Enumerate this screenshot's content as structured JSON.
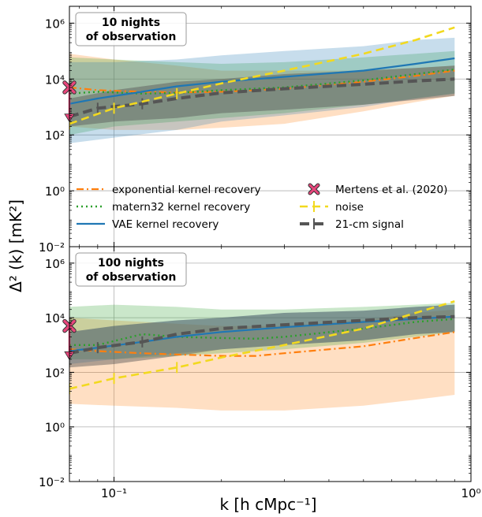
{
  "figure": {
    "ylabel": "Δ² (k) [mK²]",
    "xlabel": "k [h cMpc⁻¹]"
  },
  "legend": {
    "exponential": "exponential kernel recovery",
    "matern32": "matern32 kernel recovery",
    "vae": "VAE kernel recovery",
    "mertens": "Mertens et al. (2020)",
    "noise": "noise",
    "signal": "21-cm signal"
  },
  "colors": {
    "exponential": "#ff7f0e",
    "matern32": "#2ca02c",
    "vae": "#1f77b4",
    "mertens": "#e8467c",
    "noise": "#f2d91f",
    "signal": "#555555"
  },
  "chart_data": [
    {
      "type": "line",
      "title": "10 nights of observation",
      "xscale": "log",
      "yscale": "log",
      "xlim": [
        0.075,
        1.0
      ],
      "ylim": [
        0.01,
        4000000
      ],
      "x_ticks": [
        "10⁻¹",
        "10⁰"
      ],
      "y_ticks": [
        "10⁻²",
        "10⁰",
        "10²",
        "10⁴",
        "10⁶"
      ],
      "grid": true,
      "legend_position": "bottom",
      "bands": [
        {
          "series": "exponential",
          "x": [
            0.075,
            0.1,
            0.15,
            0.2,
            0.3,
            0.5,
            0.7,
            0.9
          ],
          "low": [
            200,
            150,
            150,
            180,
            250,
            700,
            1500,
            2500
          ],
          "high": [
            80000,
            50000,
            30000,
            20000,
            20000,
            20000,
            25000,
            30000
          ]
        },
        {
          "series": "matern32",
          "x": [
            0.075,
            0.1,
            0.15,
            0.2,
            0.3,
            0.5,
            0.7,
            0.9
          ],
          "low": [
            100,
            200,
            300,
            400,
            600,
            1200,
            2000,
            3000
          ],
          "high": [
            60000,
            50000,
            40000,
            35000,
            40000,
            60000,
            80000,
            100000
          ]
        },
        {
          "series": "vae",
          "x": [
            0.075,
            0.1,
            0.15,
            0.2,
            0.3,
            0.5,
            0.7,
            0.9
          ],
          "low": [
            50,
            80,
            150,
            300,
            500,
            1000,
            2000,
            3000
          ],
          "high": [
            40000,
            40000,
            50000,
            70000,
            100000,
            150000,
            250000,
            300000
          ]
        },
        {
          "series": "signal",
          "x": [
            0.075,
            0.1,
            0.15,
            0.2,
            0.3,
            0.5,
            0.7,
            0.9
          ],
          "low": [
            200,
            300,
            400,
            600,
            800,
            1200,
            1800,
            2500
          ],
          "high": [
            2000,
            4000,
            8000,
            10000,
            15000,
            20000,
            25000,
            30000
          ]
        }
      ],
      "series": [
        {
          "name": "exponential kernel recovery",
          "style": "dashdot",
          "x": [
            0.075,
            0.09,
            0.12,
            0.15,
            0.2,
            0.3,
            0.5,
            0.7,
            0.9
          ],
          "y": [
            5000,
            4000,
            3500,
            3300,
            3500,
            4500,
            8000,
            13000,
            20000
          ]
        },
        {
          "name": "matern32 kernel recovery",
          "style": "dotted",
          "x": [
            0.075,
            0.09,
            0.12,
            0.15,
            0.2,
            0.3,
            0.5,
            0.7,
            0.9
          ],
          "y": [
            3000,
            3500,
            3000,
            3200,
            4000,
            5000,
            9000,
            15000,
            22000
          ]
        },
        {
          "name": "VAE kernel recovery",
          "style": "solid",
          "x": [
            0.075,
            0.09,
            0.12,
            0.15,
            0.2,
            0.3,
            0.5,
            0.7,
            0.9
          ],
          "y": [
            1300,
            2000,
            3500,
            5500,
            8000,
            12000,
            20000,
            35000,
            55000
          ]
        },
        {
          "name": "21-cm signal",
          "style": "dashed-thick",
          "x": [
            0.075,
            0.09,
            0.12,
            0.15,
            0.2,
            0.3,
            0.5,
            0.7,
            0.9
          ],
          "y": [
            450,
            900,
            1300,
            2000,
            3200,
            4500,
            6500,
            8500,
            10000
          ]
        },
        {
          "name": "noise",
          "style": "dashed",
          "x": [
            0.075,
            0.1,
            0.15,
            0.2,
            0.3,
            0.5,
            0.7,
            0.9
          ],
          "y": [
            250,
            900,
            3000,
            7000,
            20000,
            80000,
            250000,
            700000
          ]
        }
      ],
      "mertens": {
        "x": 0.075,
        "y": 5000,
        "upper_limit": true
      }
    },
    {
      "type": "line",
      "title": "100 nights of observation",
      "xscale": "log",
      "yscale": "log",
      "xlim": [
        0.075,
        1.0
      ],
      "ylim": [
        0.01,
        4000000
      ],
      "x_ticks": [
        "10⁻¹",
        "10⁰"
      ],
      "y_ticks": [
        "10⁻²",
        "10⁰",
        "10²",
        "10⁴",
        "10⁶"
      ],
      "grid": true,
      "bands": [
        {
          "series": "exponential",
          "x": [
            0.075,
            0.1,
            0.15,
            0.2,
            0.3,
            0.5,
            0.7,
            0.9
          ],
          "low": [
            7,
            6,
            5,
            4,
            4,
            6,
            10,
            15
          ],
          "high": [
            10000,
            8000,
            6000,
            5000,
            5000,
            8000,
            15000,
            20000
          ]
        },
        {
          "series": "matern32",
          "x": [
            0.075,
            0.1,
            0.15,
            0.2,
            0.3,
            0.5,
            0.7,
            0.9
          ],
          "low": [
            300,
            300,
            400,
            500,
            700,
            1200,
            2000,
            3000
          ],
          "high": [
            25000,
            30000,
            25000,
            20000,
            20000,
            25000,
            30000,
            35000
          ]
        },
        {
          "series": "vae",
          "x": [
            0.075,
            0.1,
            0.15,
            0.2,
            0.3,
            0.5,
            0.7,
            0.9
          ],
          "low": [
            200,
            300,
            500,
            700,
            1000,
            1500,
            2500,
            3000
          ],
          "high": [
            3000,
            5000,
            8000,
            10000,
            15000,
            18000,
            25000,
            30000
          ]
        },
        {
          "series": "signal",
          "x": [
            0.075,
            0.1,
            0.15,
            0.2,
            0.3,
            0.5,
            0.7,
            0.9
          ],
          "low": [
            150,
            200,
            400,
            700,
            1000,
            1500,
            2500,
            3000
          ],
          "high": [
            3000,
            5000,
            8000,
            10000,
            15000,
            18000,
            25000,
            30000
          ]
        }
      ],
      "series": [
        {
          "name": "exponential kernel recovery",
          "style": "dashdot",
          "x": [
            0.075,
            0.09,
            0.12,
            0.15,
            0.2,
            0.25,
            0.3,
            0.5,
            0.7,
            0.9
          ],
          "y": [
            700,
            600,
            500,
            450,
            400,
            400,
            500,
            900,
            1800,
            3000
          ]
        },
        {
          "name": "matern32 kernel recovery",
          "style": "dotted",
          "x": [
            0.075,
            0.09,
            0.12,
            0.15,
            0.2,
            0.25,
            0.3,
            0.5,
            0.7,
            0.9
          ],
          "y": [
            1000,
            1000,
            2500,
            2000,
            1800,
            1700,
            2000,
            4000,
            7000,
            9000
          ]
        },
        {
          "name": "VAE kernel recovery",
          "style": "solid",
          "x": [
            0.075,
            0.09,
            0.12,
            0.15,
            0.2,
            0.3,
            0.5,
            0.7,
            0.9
          ],
          "y": [
            600,
            800,
            1300,
            2000,
            3000,
            4500,
            7000,
            9000,
            11000
          ]
        },
        {
          "name": "21-cm signal",
          "style": "dashed-thick",
          "x": [
            0.075,
            0.09,
            0.12,
            0.15,
            0.2,
            0.3,
            0.5,
            0.7,
            0.9
          ],
          "y": [
            500,
            800,
            1300,
            2500,
            4000,
            5500,
            8000,
            10000,
            11000
          ]
        },
        {
          "name": "noise",
          "style": "dashed",
          "x": [
            0.075,
            0.1,
            0.15,
            0.2,
            0.3,
            0.5,
            0.7,
            0.9
          ],
          "y": [
            25,
            60,
            150,
            350,
            1000,
            4000,
            15000,
            40000
          ]
        }
      ],
      "mertens": {
        "x": 0.075,
        "y": 5000,
        "upper_limit": true
      }
    }
  ]
}
